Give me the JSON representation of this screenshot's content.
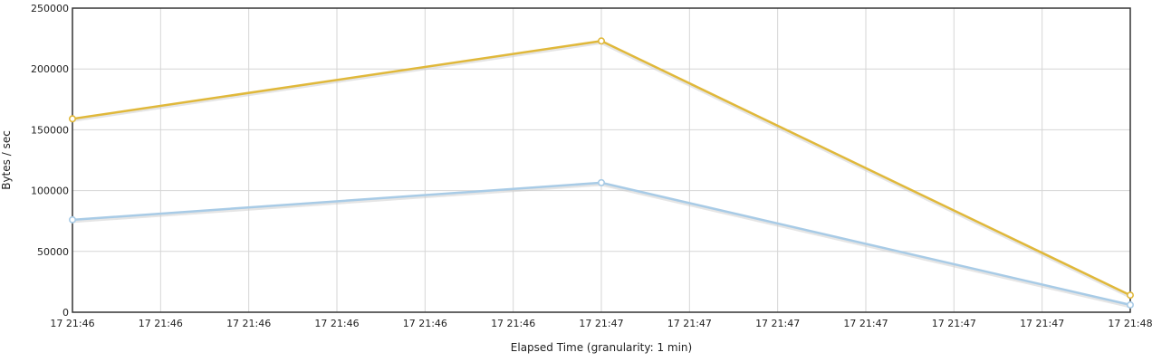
{
  "chart_data": {
    "type": "line",
    "title": "",
    "xlabel": "Elapsed Time (granularity: 1 min)",
    "ylabel": "Bytes / sec",
    "ylim": [
      0,
      250000
    ],
    "y_ticks": [
      "0",
      "50000",
      "100000",
      "150000",
      "200000",
      "250000"
    ],
    "x_tick_labels": [
      "17 21:46",
      "17 21:46",
      "17 21:46",
      "17 21:46",
      "17 21:46",
      "17 21:46",
      "17 21:47",
      "17 21:47",
      "17 21:47",
      "17 21:47",
      "17 21:47",
      "17 21:47",
      "17 21:48"
    ],
    "grid": true,
    "legend": "none",
    "series": [
      {
        "color": "#e0b83a",
        "x_index": [
          0,
          6,
          12
        ],
        "values": [
          159000,
          223000,
          14000
        ]
      },
      {
        "color": "#a8cbe6",
        "x_index": [
          0,
          6,
          12
        ],
        "values": [
          76000,
          106500,
          6000
        ]
      }
    ]
  }
}
